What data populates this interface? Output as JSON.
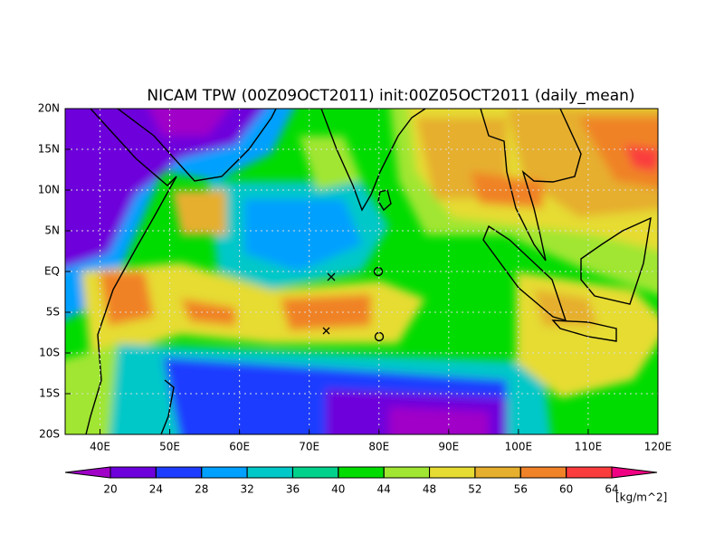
{
  "map": {
    "title": "NICAM TPW (00Z09OCT2011) init:00Z05OCT2011 (daily_mean)",
    "xlim": [
      35,
      120
    ],
    "ylim": [
      -20,
      20
    ],
    "xticks": [
      {
        "value": 40,
        "label": "40E"
      },
      {
        "value": 50,
        "label": "50E"
      },
      {
        "value": 60,
        "label": "60E"
      },
      {
        "value": 70,
        "label": "70E"
      },
      {
        "value": 80,
        "label": "80E"
      },
      {
        "value": 90,
        "label": "90E"
      },
      {
        "value": 100,
        "label": "100E"
      },
      {
        "value": 110,
        "label": "110E"
      },
      {
        "value": 120,
        "label": "120E"
      }
    ],
    "yticks": [
      {
        "value": 20,
        "label": "20N"
      },
      {
        "value": 15,
        "label": "15N"
      },
      {
        "value": 10,
        "label": "10N"
      },
      {
        "value": 5,
        "label": "5N"
      },
      {
        "value": 0,
        "label": "EQ"
      },
      {
        "value": -5,
        "label": "5S"
      },
      {
        "value": -10,
        "label": "10S"
      },
      {
        "value": -15,
        "label": "15S"
      },
      {
        "value": -20,
        "label": "20S"
      }
    ],
    "grid": true,
    "colorbar": {
      "ticks": [
        20,
        24,
        28,
        32,
        36,
        40,
        44,
        48,
        52,
        56,
        60,
        64
      ],
      "colors": [
        "#a000c8",
        "#6e00dc",
        "#1e3cff",
        "#00a0ff",
        "#00c8c8",
        "#00d28c",
        "#00dc00",
        "#a0e632",
        "#e6dc32",
        "#e6af2d",
        "#f08228",
        "#fa3c3c",
        "#f00082"
      ],
      "unit": "[kg/m^2]"
    }
  }
}
